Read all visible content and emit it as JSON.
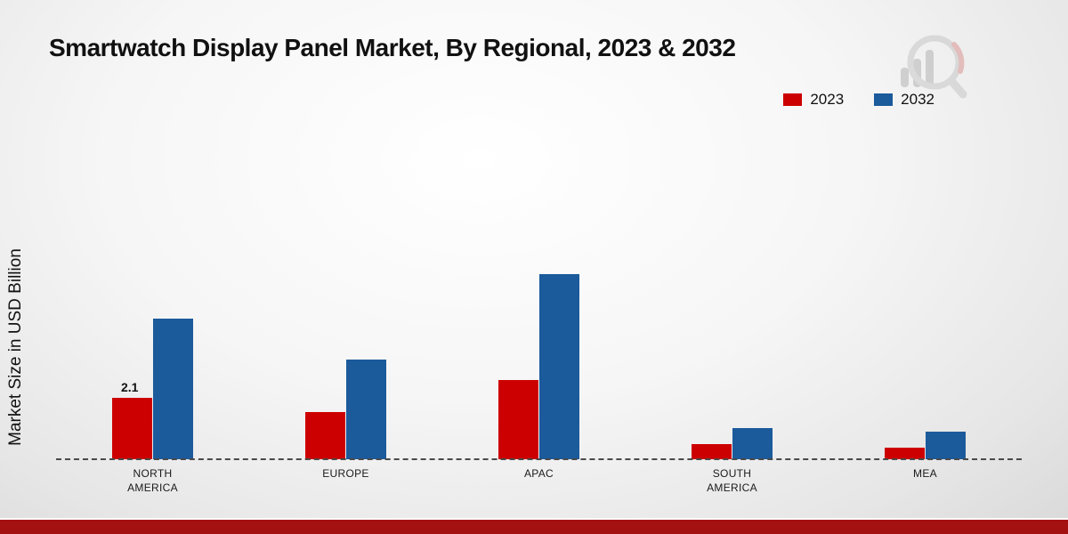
{
  "title": "Smartwatch Display Panel Market, By Regional, 2023 & 2032",
  "y_axis_label": "Market Size in USD Billion",
  "legend": {
    "items": [
      {
        "label": "2023",
        "color": "#cc0001"
      },
      {
        "label": "2032",
        "color": "#1b5a9b"
      }
    ]
  },
  "colors": {
    "series_2023": "#cc0001",
    "series_2032": "#1b5a9b",
    "footer": "#a31111"
  },
  "chart_data": {
    "type": "bar",
    "title": "Smartwatch Display Panel Market, By Regional, 2023 & 2032",
    "xlabel": "",
    "ylabel": "Market Size in USD Billion",
    "categories": [
      "NORTH AMERICA",
      "EUROPE",
      "APAC",
      "SOUTH AMERICA",
      "MEA"
    ],
    "series": [
      {
        "name": "2023",
        "color": "#cc0001",
        "values": [
          2.1,
          1.6,
          2.7,
          0.5,
          0.4
        ]
      },
      {
        "name": "2032",
        "color": "#1b5a9b",
        "values": [
          4.8,
          3.4,
          6.3,
          1.05,
          0.95
        ]
      }
    ],
    "data_labels": [
      {
        "series": "2023",
        "category_index": 0,
        "text": "2.1"
      }
    ],
    "ylim": [
      0,
      7
    ],
    "grid": false,
    "baseline_style": "dashed",
    "legend_position": "top-right"
  }
}
